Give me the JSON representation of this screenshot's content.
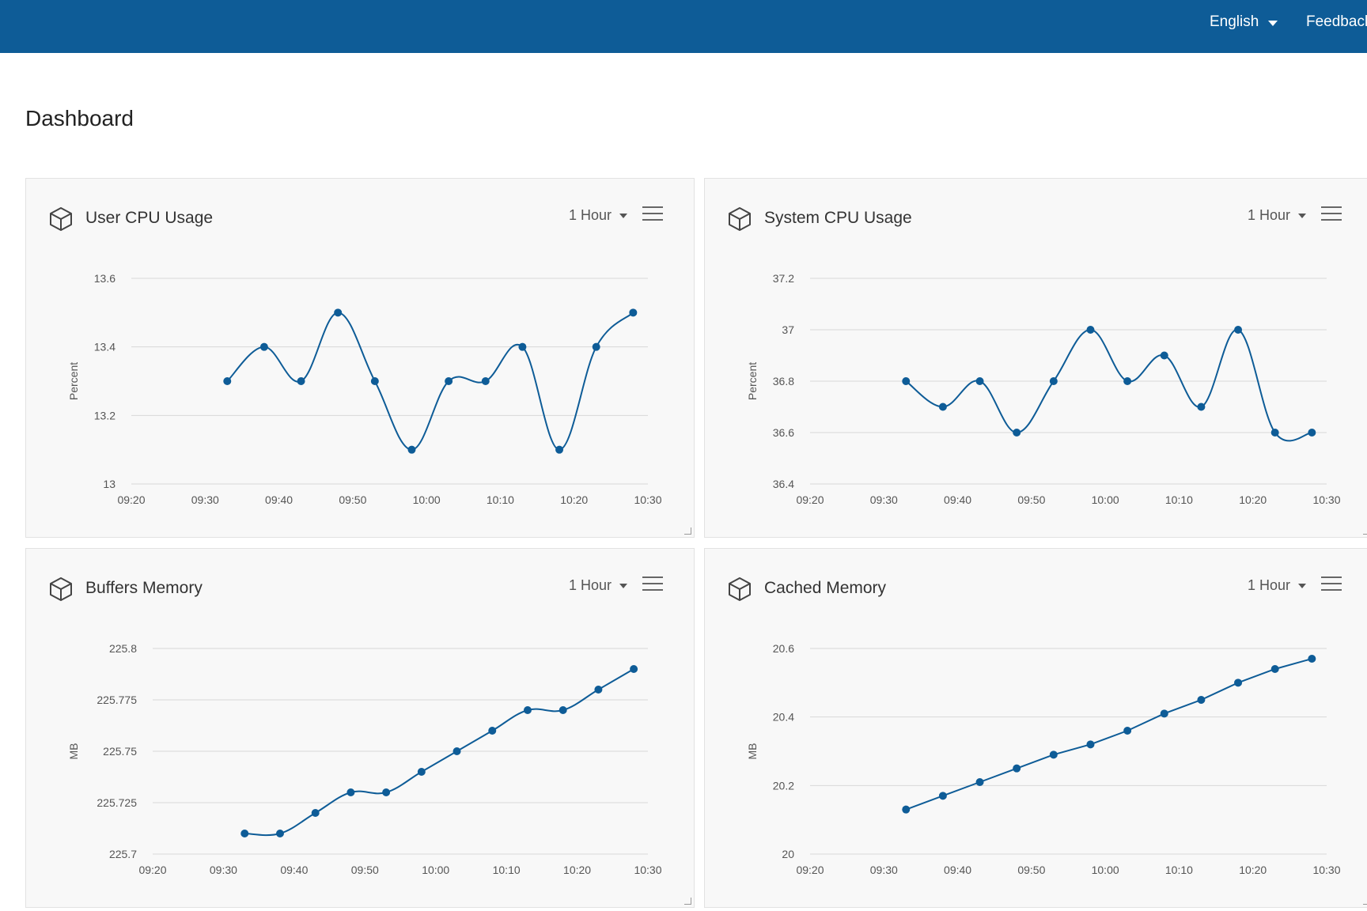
{
  "header": {
    "language_label": "English",
    "feedback_label": "Feedback",
    "bg_color": "#0e5c97"
  },
  "page": {
    "title": "Dashboard"
  },
  "cards": [
    {
      "title": "User CPU Usage",
      "range_label": "1 Hour"
    },
    {
      "title": "System CPU Usage",
      "range_label": "1 Hour"
    },
    {
      "title": "Buffers Memory",
      "range_label": "1 Hour"
    },
    {
      "title": "Cached Memory",
      "range_label": "1 Hour"
    }
  ],
  "chart_data": [
    {
      "type": "line",
      "title": "User CPU Usage",
      "ylabel": "Percent",
      "xlabel": "",
      "x_ticks": [
        "09:20",
        "09:30",
        "09:40",
        "09:50",
        "10:00",
        "10:10",
        "10:20",
        "10:30"
      ],
      "y_ticks": [
        "13",
        "13.2",
        "13.4",
        "13.6"
      ],
      "xlim": [
        "09:20",
        "10:30"
      ],
      "ylim": [
        13,
        13.6
      ],
      "smooth": true,
      "color": "#0e5c97",
      "x": [
        "09:33",
        "09:38",
        "09:43",
        "09:48",
        "09:53",
        "09:58",
        "10:03",
        "10:08",
        "10:13",
        "10:18",
        "10:23",
        "10:28"
      ],
      "series": [
        {
          "values": [
            13.3,
            13.4,
            13.3,
            13.5,
            13.3,
            13.1,
            13.3,
            13.3,
            13.4,
            13.1,
            13.4,
            13.5
          ]
        }
      ]
    },
    {
      "type": "line",
      "title": "System CPU Usage",
      "ylabel": "Percent",
      "xlabel": "",
      "x_ticks": [
        "09:20",
        "09:30",
        "09:40",
        "09:50",
        "10:00",
        "10:10",
        "10:20",
        "10:30"
      ],
      "y_ticks": [
        "36.4",
        "36.6",
        "36.8",
        "37",
        "37.2"
      ],
      "xlim": [
        "09:20",
        "10:30"
      ],
      "ylim": [
        36.4,
        37.2
      ],
      "smooth": true,
      "color": "#0e5c97",
      "x": [
        "09:33",
        "09:38",
        "09:43",
        "09:48",
        "09:53",
        "09:58",
        "10:03",
        "10:08",
        "10:13",
        "10:18",
        "10:23",
        "10:28"
      ],
      "series": [
        {
          "values": [
            36.8,
            36.7,
            36.8,
            36.6,
            36.8,
            37.0,
            36.8,
            36.9,
            36.7,
            37.0,
            36.6,
            36.6
          ]
        }
      ]
    },
    {
      "type": "line",
      "title": "Buffers Memory",
      "ylabel": "MB",
      "xlabel": "",
      "x_ticks": [
        "09:20",
        "09:30",
        "09:40",
        "09:50",
        "10:00",
        "10:10",
        "10:20",
        "10:30"
      ],
      "y_ticks": [
        "225.7",
        "225.725",
        "225.75",
        "225.775",
        "225.8"
      ],
      "xlim": [
        "09:20",
        "10:30"
      ],
      "ylim": [
        225.7,
        225.8
      ],
      "smooth": true,
      "color": "#0e5c97",
      "x": [
        "09:33",
        "09:38",
        "09:43",
        "09:48",
        "09:53",
        "09:58",
        "10:03",
        "10:08",
        "10:13",
        "10:18",
        "10:23",
        "10:28"
      ],
      "series": [
        {
          "values": [
            225.71,
            225.71,
            225.72,
            225.73,
            225.73,
            225.74,
            225.75,
            225.76,
            225.77,
            225.77,
            225.78,
            225.79
          ]
        }
      ]
    },
    {
      "type": "line",
      "title": "Cached Memory",
      "ylabel": "MB",
      "xlabel": "",
      "x_ticks": [
        "09:20",
        "09:30",
        "09:40",
        "09:50",
        "10:00",
        "10:10",
        "10:20",
        "10:30"
      ],
      "y_ticks": [
        "20",
        "20.2",
        "20.4",
        "20.6"
      ],
      "xlim": [
        "09:20",
        "10:30"
      ],
      "ylim": [
        20,
        20.6
      ],
      "smooth": false,
      "color": "#0e5c97",
      "x": [
        "09:33",
        "09:38",
        "09:43",
        "09:48",
        "09:53",
        "09:58",
        "10:03",
        "10:08",
        "10:13",
        "10:18",
        "10:23",
        "10:28"
      ],
      "series": [
        {
          "values": [
            20.13,
            20.17,
            20.21,
            20.25,
            20.29,
            20.32,
            20.36,
            20.41,
            20.45,
            20.5,
            20.54,
            20.57
          ]
        }
      ]
    }
  ]
}
